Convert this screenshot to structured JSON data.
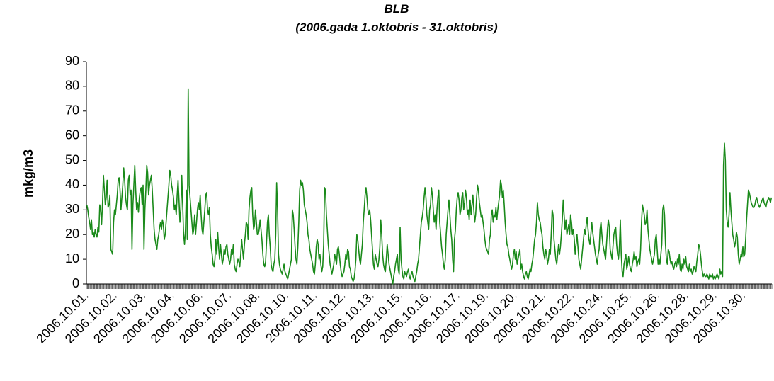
{
  "chart_data": {
    "type": "line",
    "title": "BLB",
    "subtitle": "(2006.gada 1.oktobris - 31.oktobris)",
    "y_label": "mkg/m3",
    "ylim": [
      0,
      90
    ],
    "yticks": [
      0,
      10,
      20,
      30,
      40,
      50,
      60,
      70,
      80,
      90
    ],
    "grid": false,
    "categories": [
      "2006.10.01.",
      null,
      null,
      null,
      null,
      null,
      null,
      null,
      null,
      null,
      null,
      null,
      null,
      null,
      null,
      null,
      null,
      null,
      null,
      null,
      null,
      null,
      null,
      null,
      null,
      null,
      null,
      null,
      null,
      null,
      null,
      "2006.10.02.",
      null,
      null,
      null,
      null,
      null,
      null,
      null,
      null,
      null,
      null,
      null,
      null,
      null,
      null,
      null,
      null,
      null,
      null,
      null,
      null,
      null,
      null,
      null,
      null,
      null,
      null,
      null,
      null,
      null,
      null,
      "2006.10.03.",
      null,
      null,
      null,
      null,
      null,
      null,
      null,
      null,
      null,
      null,
      null,
      null,
      null,
      null,
      null,
      null,
      null,
      null,
      null,
      null,
      null,
      null,
      null,
      null,
      null,
      null,
      null,
      null,
      null,
      null,
      "2006.10.04.",
      null,
      null,
      null,
      null,
      null,
      null,
      null,
      null,
      null,
      null,
      null,
      null,
      null,
      null,
      null,
      null,
      null,
      null,
      null,
      null,
      null,
      null,
      null,
      null,
      null,
      null,
      null,
      null,
      null,
      null,
      "2006.10.06.",
      null,
      null,
      null,
      null,
      null,
      null,
      null,
      null,
      null,
      null,
      null,
      null,
      null,
      null,
      null,
      null,
      null,
      null,
      null,
      null,
      null,
      null,
      null,
      null,
      null,
      null,
      null,
      null,
      null,
      null,
      "2006.10.07.",
      null,
      null,
      null,
      null,
      null,
      null,
      null,
      null,
      null,
      null,
      null,
      null,
      null,
      null,
      null,
      null,
      null,
      null,
      null,
      null,
      null,
      null,
      null,
      null,
      null,
      null,
      null,
      null,
      null,
      null,
      "2006.10.08.",
      null,
      null,
      null,
      null,
      null,
      null,
      null,
      null,
      null,
      null,
      null,
      null,
      null,
      null,
      null,
      null,
      null,
      null,
      null,
      null,
      null,
      null,
      null,
      null,
      null,
      null,
      null,
      null,
      null,
      null,
      "2006.10.10.",
      null,
      null,
      null,
      null,
      null,
      null,
      null,
      null,
      null,
      null,
      null,
      null,
      null,
      null,
      null,
      null,
      null,
      null,
      null,
      null,
      null,
      null,
      null,
      null,
      null,
      null,
      null,
      null,
      null,
      null,
      "2006.10.11.",
      null,
      null,
      null,
      null,
      null,
      null,
      null,
      null,
      null,
      null,
      null,
      null,
      null,
      null,
      null,
      null,
      null,
      null,
      null,
      null,
      null,
      null,
      null,
      null,
      null,
      null,
      null,
      null,
      null,
      null,
      "2006.10.12.",
      null,
      null,
      null,
      null,
      null,
      null,
      null,
      null,
      null,
      null,
      null,
      null,
      null,
      null,
      null,
      null,
      null,
      null,
      null,
      null,
      null,
      null,
      null,
      null,
      null,
      null,
      null,
      null,
      null,
      null,
      "2006.10.13.",
      null,
      null,
      null,
      null,
      null,
      null,
      null,
      null,
      null,
      null,
      null,
      null,
      null,
      null,
      null,
      null,
      null,
      null,
      null,
      null,
      null,
      null,
      null,
      null,
      null,
      null,
      null,
      null,
      null,
      null,
      "2006.10.15.",
      null,
      null,
      null,
      null,
      null,
      null,
      null,
      null,
      null,
      null,
      null,
      null,
      null,
      null,
      null,
      null,
      null,
      null,
      null,
      null,
      null,
      null,
      null,
      null,
      null,
      null,
      null,
      null,
      null,
      null,
      "2006.10.16.",
      null,
      null,
      null,
      null,
      null,
      null,
      null,
      null,
      null,
      null,
      null,
      null,
      null,
      null,
      null,
      null,
      null,
      null,
      null,
      null,
      null,
      null,
      null,
      null,
      null,
      null,
      null,
      null,
      null,
      null,
      "2006.10.17.",
      null,
      null,
      null,
      null,
      null,
      null,
      null,
      null,
      null,
      null,
      null,
      null,
      null,
      null,
      null,
      null,
      null,
      null,
      null,
      null,
      null,
      null,
      null,
      null,
      null,
      null,
      null,
      null,
      null,
      null,
      "2006.10.19.",
      null,
      null,
      null,
      null,
      null,
      null,
      null,
      null,
      null,
      null,
      null,
      null,
      null,
      null,
      null,
      null,
      null,
      null,
      null,
      null,
      null,
      null,
      null,
      null,
      null,
      null,
      null,
      null,
      null,
      null,
      "2006.10.20.",
      null,
      null,
      null,
      null,
      null,
      null,
      null,
      null,
      null,
      null,
      null,
      null,
      null,
      null,
      null,
      null,
      null,
      null,
      null,
      null,
      null,
      null,
      null,
      null,
      null,
      null,
      null,
      null,
      null,
      null,
      "2006.10.21.",
      null,
      null,
      null,
      null,
      null,
      null,
      null,
      null,
      null,
      null,
      null,
      null,
      null,
      null,
      null,
      null,
      null,
      null,
      null,
      null,
      null,
      null,
      null,
      null,
      null,
      null,
      null,
      null,
      null,
      null,
      "2006.10.22.",
      null,
      null,
      null,
      null,
      null,
      null,
      null,
      null,
      null,
      null,
      null,
      null,
      null,
      null,
      null,
      null,
      null,
      null,
      null,
      null,
      null,
      null,
      null,
      null,
      null,
      null,
      null,
      null,
      null,
      null,
      "2006.10.24.",
      null,
      null,
      null,
      null,
      null,
      null,
      null,
      null,
      null,
      null,
      null,
      null,
      null,
      null,
      null,
      null,
      null,
      null,
      null,
      null,
      null,
      null,
      null,
      null,
      null,
      null,
      null,
      null,
      null,
      null,
      "2006.10.25.",
      null,
      null,
      null,
      null,
      null,
      null,
      null,
      null,
      null,
      null,
      null,
      null,
      null,
      null,
      null,
      null,
      null,
      null,
      null,
      null,
      null,
      null,
      null,
      null,
      null,
      null,
      null,
      null,
      null,
      null,
      "2006.10.26.",
      null,
      null,
      null,
      null,
      null,
      null,
      null,
      null,
      null,
      null,
      null,
      null,
      null,
      null,
      null,
      null,
      null,
      null,
      null,
      null,
      null,
      null,
      null,
      null,
      null,
      null,
      null,
      null,
      null,
      null,
      "2006.10.28.",
      null,
      null,
      null,
      null,
      null,
      null,
      null,
      null,
      null,
      null,
      null,
      null,
      null,
      null,
      null,
      null,
      null,
      null,
      null,
      null,
      null,
      null,
      null,
      null,
      null,
      null,
      null,
      null,
      null,
      null,
      "2006.10.29.",
      null,
      null,
      null,
      null,
      null,
      null,
      null,
      null,
      null,
      null,
      null,
      null,
      null,
      null,
      null,
      null,
      null,
      null,
      null,
      null,
      null,
      null,
      null,
      null,
      null,
      null,
      null,
      null,
      null,
      null,
      "2006.10.30.",
      null,
      null,
      null,
      null,
      null,
      null,
      null,
      null,
      null,
      null,
      null,
      null,
      null,
      null,
      null,
      null,
      null,
      null,
      null,
      null,
      null,
      null,
      null,
      null,
      null,
      null,
      null,
      null,
      null,
      null
    ],
    "series": [
      {
        "name": "BLB",
        "color": "#1a8a1a",
        "values": [
          32,
          30,
          27,
          25,
          22,
          26,
          20,
          21,
          19,
          22,
          20,
          19,
          23,
          21,
          32,
          30,
          24,
          33,
          44,
          38,
          32,
          35,
          42,
          31,
          32,
          36,
          14,
          13,
          12,
          25,
          30,
          28,
          32,
          36,
          42,
          43,
          38,
          30,
          35,
          40,
          47,
          42,
          35,
          32,
          30,
          42,
          44,
          36,
          38,
          14,
          32,
          40,
          48,
          38,
          30,
          33,
          29,
          35,
          38,
          39,
          32,
          40,
          14,
          30,
          38,
          48,
          45,
          36,
          40,
          42,
          44,
          38,
          30,
          22,
          18,
          16,
          14,
          18,
          20,
          23,
          25,
          22,
          26,
          24,
          18,
          20,
          25,
          30,
          35,
          40,
          46,
          44,
          40,
          38,
          35,
          30,
          32,
          28,
          36,
          42,
          34,
          25,
          30,
          44,
          32,
          20,
          16,
          22,
          38,
          18,
          79,
          40,
          35,
          30,
          25,
          20,
          22,
          28,
          20,
          25,
          30,
          33,
          30,
          36,
          28,
          22,
          20,
          25,
          30,
          36,
          37,
          30,
          28,
          31,
          20,
          15,
          12,
          8,
          7,
          10,
          18,
          12,
          21,
          15,
          10,
          16,
          12,
          8,
          10,
          14,
          12,
          15,
          16,
          12,
          10,
          8,
          10,
          14,
          12,
          16,
          8,
          6,
          5,
          8,
          10,
          9,
          7,
          12,
          18,
          14,
          10,
          16,
          20,
          25,
          24,
          18,
          30,
          35,
          38,
          39,
          28,
          22,
          24,
          30,
          25,
          20,
          20,
          22,
          26,
          22,
          18,
          12,
          8,
          7,
          9,
          17,
          25,
          28,
          20,
          15,
          8,
          6,
          5,
          8,
          10,
          20,
          41,
          30,
          12,
          8,
          6,
          5,
          4,
          6,
          8,
          5,
          4,
          3,
          2,
          4,
          6,
          8,
          10,
          30,
          28,
          22,
          15,
          10,
          8,
          15,
          25,
          38,
          42,
          40,
          41,
          38,
          32,
          30,
          28,
          25,
          20,
          18,
          14,
          12,
          10,
          8,
          5,
          4,
          8,
          15,
          18,
          16,
          10,
          12,
          8,
          5,
          7,
          16,
          39,
          38,
          28,
          22,
          16,
          12,
          8,
          6,
          4,
          6,
          8,
          12,
          10,
          8,
          14,
          15,
          12,
          8,
          5,
          3,
          4,
          5,
          8,
          12,
          10,
          14,
          13,
          7,
          6,
          3,
          2,
          1,
          2,
          5,
          10,
          20,
          18,
          14,
          10,
          8,
          12,
          16,
          25,
          30,
          36,
          39,
          35,
          30,
          28,
          30,
          26,
          20,
          14,
          8,
          6,
          12,
          10,
          8,
          7,
          10,
          15,
          26,
          20,
          12,
          8,
          6,
          5,
          10,
          16,
          12,
          8,
          6,
          4,
          2,
          0,
          3,
          5,
          8,
          10,
          12,
          6,
          4,
          23,
          10,
          6,
          3,
          2,
          5,
          4,
          3,
          5,
          6,
          3,
          2,
          4,
          5,
          3,
          2,
          1,
          3,
          5,
          8,
          10,
          15,
          20,
          25,
          27,
          30,
          35,
          39,
          35,
          28,
          25,
          22,
          30,
          32,
          39,
          36,
          30,
          25,
          28,
          22,
          30,
          35,
          38,
          25,
          20,
          15,
          12,
          8,
          6,
          10,
          20,
          25,
          30,
          34,
          28,
          22,
          18,
          10,
          5,
          18,
          22,
          30,
          35,
          37,
          34,
          28,
          30,
          35,
          37,
          30,
          33,
          38,
          35,
          28,
          30,
          26,
          34,
          28,
          32,
          36,
          30,
          25,
          28,
          35,
          40,
          38,
          33,
          30,
          27,
          28,
          25,
          22,
          18,
          15,
          14,
          13,
          12,
          18,
          20,
          28,
          30,
          25,
          28,
          27,
          31,
          26,
          30,
          33,
          36,
          42,
          40,
          35,
          38,
          32,
          25,
          20,
          16,
          15,
          12,
          10,
          8,
          6,
          8,
          12,
          14,
          10,
          13,
          8,
          10,
          12,
          14,
          6,
          8,
          5,
          3,
          2,
          4,
          5,
          3,
          2,
          4,
          6,
          5,
          8,
          10,
          14,
          18,
          20,
          25,
          33,
          28,
          26,
          25,
          22,
          20,
          15,
          12,
          10,
          14,
          12,
          8,
          10,
          14,
          12,
          20,
          30,
          28,
          18,
          14,
          10,
          8,
          12,
          16,
          12,
          15,
          20,
          26,
          34,
          28,
          22,
          26,
          20,
          22,
          24,
          20,
          28,
          25,
          20,
          22,
          18,
          12,
          16,
          20,
          15,
          10,
          8,
          6,
          10,
          14,
          18,
          22,
          20,
          24,
          27,
          22,
          18,
          16,
          20,
          25,
          21,
          18,
          15,
          12,
          10,
          8,
          12,
          14,
          22,
          25,
          20,
          16,
          14,
          12,
          10,
          16,
          22,
          26,
          23,
          14,
          12,
          10,
          15,
          20,
          22,
          23,
          16,
          12,
          10,
          15,
          26,
          12,
          5,
          3,
          8,
          10,
          12,
          6,
          8,
          11,
          8,
          6,
          5,
          8,
          10,
          13,
          10,
          11,
          7,
          9,
          10,
          8,
          14,
          25,
          32,
          30,
          28,
          24,
          25,
          30,
          22,
          18,
          14,
          12,
          10,
          8,
          10,
          12,
          18,
          20,
          14,
          8,
          10,
          8,
          12,
          16,
          30,
          32,
          28,
          16,
          10,
          8,
          14,
          13,
          10,
          8,
          9,
          7,
          6,
          8,
          9,
          7,
          10,
          8,
          12,
          6,
          5,
          8,
          6,
          10,
          8,
          11,
          7,
          6,
          5,
          8,
          5,
          6,
          4,
          5,
          7,
          6,
          5,
          9,
          12,
          16,
          15,
          12,
          8,
          5,
          3,
          4,
          3,
          3,
          4,
          3,
          2,
          4,
          3,
          3,
          4,
          2,
          3,
          2,
          3,
          4,
          3,
          2,
          6,
          4,
          5,
          3,
          48,
          57,
          50,
          30,
          25,
          23,
          28,
          37,
          30,
          25,
          20,
          18,
          15,
          17,
          21,
          19,
          12,
          8,
          10,
          12,
          11,
          15,
          11,
          12,
          18,
          26,
          32,
          38,
          37,
          35,
          33,
          32,
          31,
          31,
          32,
          34,
          35,
          33,
          32,
          31,
          32,
          33,
          34,
          35,
          33,
          32,
          31,
          33,
          34,
          35,
          34,
          33,
          35
        ]
      }
    ]
  }
}
